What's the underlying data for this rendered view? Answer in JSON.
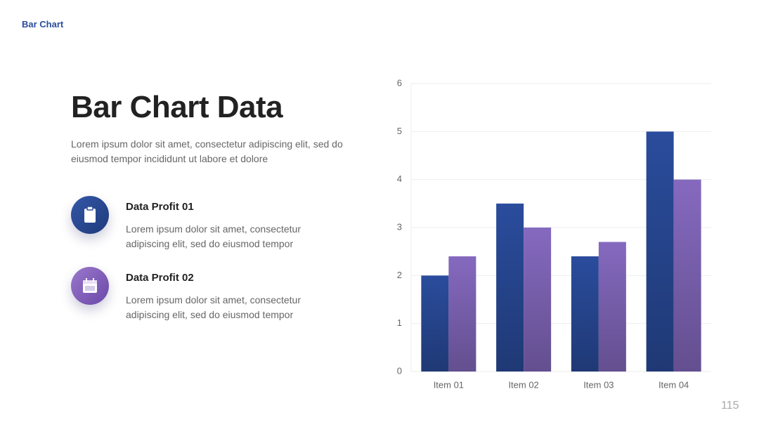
{
  "header": {
    "label": "Bar Chart"
  },
  "title": "Bar Chart Data",
  "description": "Lorem ipsum dolor sit amet, consectetur adipiscing elit, sed do eiusmod tempor incididunt ut labore et dolore",
  "items": [
    {
      "title": "Data Profit 01",
      "text": "Lorem ipsum dolor sit amet, consectetur adipiscing elit, sed do eiusmod tempor"
    },
    {
      "title": "Data Profit 02",
      "text": "Lorem ipsum dolor sit amet, consectetur adipiscing elit, sed do eiusmod tempor"
    }
  ],
  "page_number": 115,
  "chart_data": {
    "type": "bar",
    "categories": [
      "Item 01",
      "Item 02",
      "Item 03",
      "Item 04"
    ],
    "series": [
      {
        "color": "#2a4c9c",
        "values": [
          2,
          3.5,
          2.4,
          5
        ]
      },
      {
        "color": "#8569bf",
        "values": [
          2.4,
          3,
          2.7,
          4
        ]
      }
    ],
    "ylim": [
      0,
      6
    ],
    "yticks": [
      0,
      1,
      2,
      3,
      4,
      5,
      6
    ],
    "grid": true
  }
}
